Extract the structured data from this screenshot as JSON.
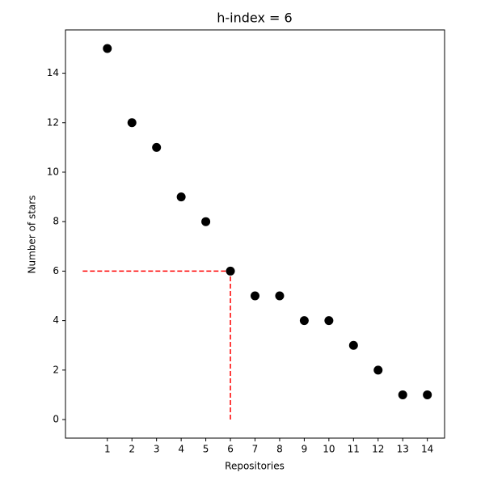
{
  "chart_data": {
    "type": "scatter",
    "title": "h-index = 6",
    "x_label": "Repositories",
    "y_label": "Number of stars",
    "x": [
      1,
      2,
      3,
      4,
      5,
      6,
      7,
      8,
      9,
      10,
      11,
      12,
      13,
      14
    ],
    "values": [
      15,
      12,
      11,
      9,
      8,
      6,
      5,
      5,
      4,
      4,
      3,
      2,
      1,
      1
    ],
    "color": "#000000",
    "xlim": [
      -0.7,
      14.7
    ],
    "ylim": [
      -0.75,
      15.75
    ],
    "xticks": [
      1,
      2,
      3,
      4,
      5,
      6,
      7,
      8,
      9,
      10,
      11,
      12,
      13,
      14
    ],
    "yticks": [
      0,
      2,
      4,
      6,
      8,
      10,
      12,
      14
    ],
    "h_index": 6,
    "h_index_color": "#ff0000"
  }
}
